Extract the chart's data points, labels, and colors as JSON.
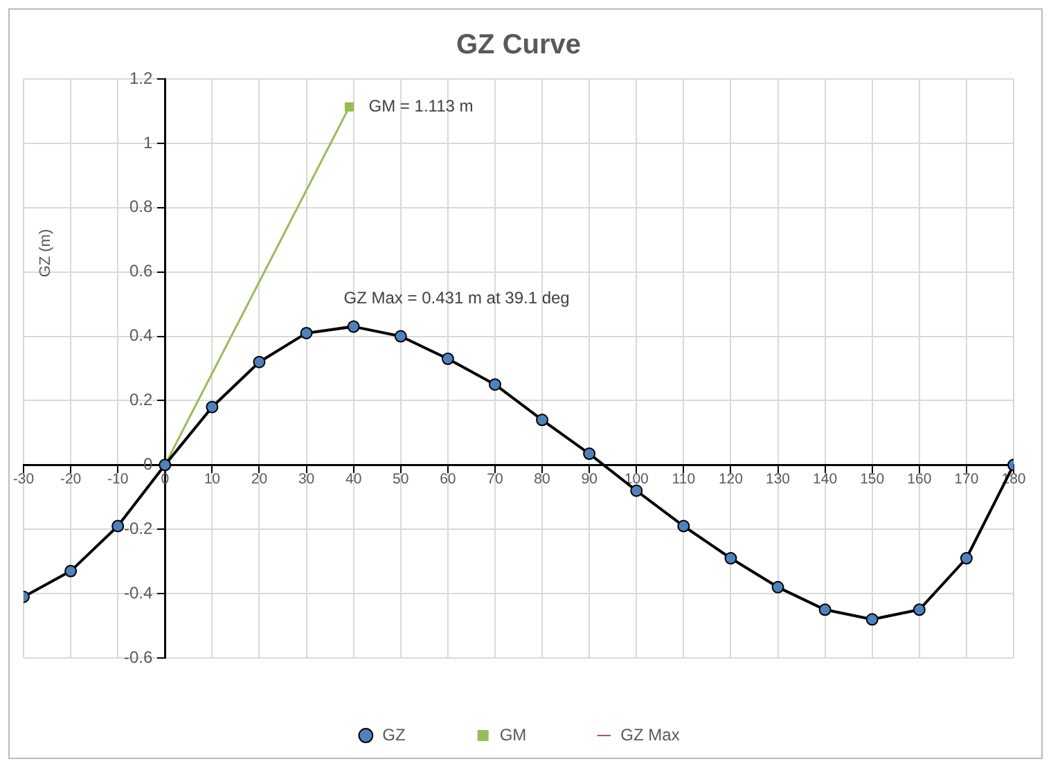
{
  "chart_data": {
    "type": "line",
    "title": "GZ Curve",
    "ylabel": "GZ (m)",
    "xlim": [
      -30,
      180
    ],
    "xticks": [
      -30,
      -20,
      -10,
      0,
      10,
      20,
      30,
      40,
      50,
      60,
      70,
      80,
      90,
      100,
      110,
      120,
      130,
      140,
      150,
      160,
      170,
      180
    ],
    "ylim": [
      -0.6,
      1.2
    ],
    "yticks": [
      -0.6,
      -0.4,
      -0.2,
      0,
      0.2,
      0.4,
      0.6,
      0.8,
      1,
      1.2
    ],
    "grid": true,
    "legend": "bottom",
    "series": [
      {
        "name": "GZ",
        "color": "#4f81bd",
        "marker": "circle",
        "x": [
          -30,
          -20,
          -10,
          0,
          10,
          20,
          30,
          40,
          50,
          60,
          70,
          80,
          90,
          100,
          110,
          120,
          130,
          140,
          150,
          160,
          170,
          180
        ],
        "values": [
          -0.41,
          -0.33,
          -0.19,
          0,
          0.18,
          0.32,
          0.41,
          0.43,
          0.4,
          0.33,
          0.25,
          0.14,
          0.035,
          -0.08,
          -0.19,
          -0.29,
          -0.38,
          -0.45,
          -0.48,
          -0.45,
          -0.29,
          0
        ]
      },
      {
        "name": "GM",
        "color": "#9bbb59",
        "marker": "square",
        "x": [
          0,
          39.1
        ],
        "values": [
          0,
          1.113
        ]
      },
      {
        "name": "GZ Max",
        "color": "#c0504d",
        "marker": "none",
        "x": [
          30,
          39.1
        ],
        "values": [
          0.41,
          0.431
        ]
      }
    ],
    "annotations": [
      {
        "text": "GM = 1.113 m",
        "x": 39.1,
        "y": 1.113
      },
      {
        "text": "GZ Max = 0.431 m at 39.1 deg",
        "x": 39.1,
        "y": 0.431
      }
    ]
  }
}
